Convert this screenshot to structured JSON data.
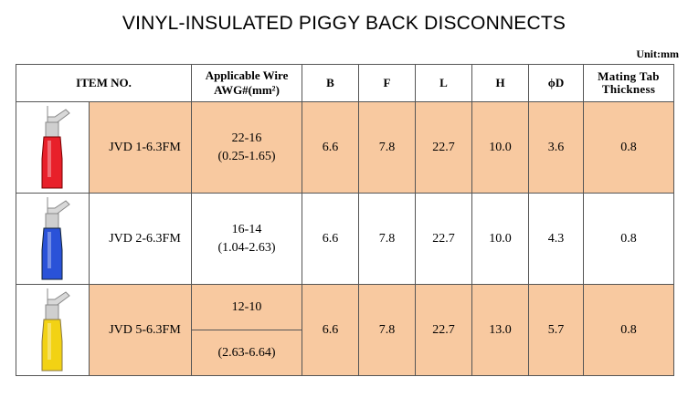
{
  "title": "VINYL-INSULATED PIGGY BACK DISCONNECTS",
  "unit": "Unit:mm",
  "headers": {
    "item_no": "ITEM NO.",
    "wire_line1": "Applicable Wire",
    "wire_line2": "AWG#(mm²)",
    "b": "B",
    "f": "F",
    "l": "L",
    "h": "H",
    "d": "ϕD",
    "mating_line1": "Mating Tab",
    "mating_line2": "Thickness"
  },
  "rows": [
    {
      "item": "JVD 1-6.3FM",
      "awg": "22-16",
      "mm2": "(0.25-1.65)",
      "b": "6.6",
      "f": "7.8",
      "l": "22.7",
      "h": "10.0",
      "d": "3.6",
      "tab": "0.8",
      "color": "#e8202a",
      "color_name": "red"
    },
    {
      "item": "JVD 2-6.3FM",
      "awg": "16-14",
      "mm2": "(1.04-2.63)",
      "b": "6.6",
      "f": "7.8",
      "l": "22.7",
      "h": "10.0",
      "d": "4.3",
      "tab": "0.8",
      "color": "#2a52d8",
      "color_name": "blue"
    },
    {
      "item": "JVD 5-6.3FM",
      "awg": "12-10",
      "mm2": "(2.63-6.64)",
      "b": "6.6",
      "f": "7.8",
      "l": "22.7",
      "h": "13.0",
      "d": "5.7",
      "tab": "0.8",
      "color": "#f2d214",
      "color_name": "yellow"
    }
  ]
}
